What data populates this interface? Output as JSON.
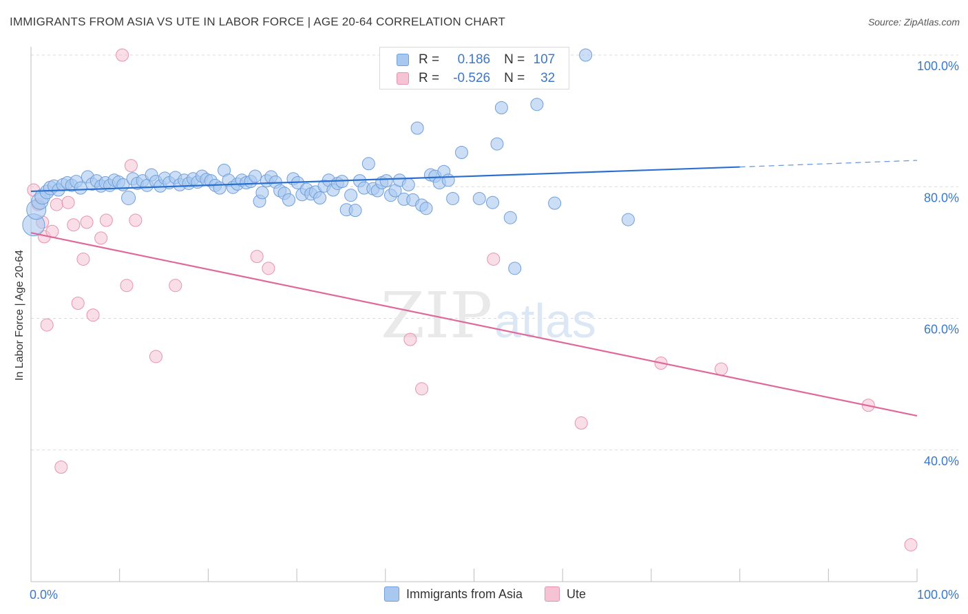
{
  "title": "IMMIGRANTS FROM ASIA VS UTE IN LABOR FORCE | AGE 20-64 CORRELATION CHART",
  "source": "Source: ZipAtlas.com",
  "watermark": {
    "zip": "ZIP",
    "atlas": "atlas"
  },
  "legend": {
    "rows": [
      {
        "r_label": "R =",
        "r_value": "0.186",
        "n_label": "N =",
        "n_value": "107"
      },
      {
        "r_label": "R =",
        "r_value": "-0.526",
        "n_label": "N =",
        "n_value": "32"
      }
    ]
  },
  "bottom_legend": [
    {
      "label": "Immigrants from Asia"
    },
    {
      "label": "Ute"
    }
  ],
  "colors": {
    "blue_fill": "#a9c8f0",
    "blue_stroke": "#6f9ed8",
    "blue_line": "#2a6fd0",
    "pink_fill": "#f6c3d4",
    "pink_stroke": "#e891ae",
    "pink_line": "#e0679a",
    "tick_label": "#3a78c9",
    "grid": "#d8d8d8"
  },
  "chart_data": {
    "type": "scatter",
    "title": "IMMIGRANTS FROM ASIA VS UTE IN LABOR FORCE | AGE 20-64 CORRELATION CHART",
    "xlabel": "",
    "ylabel": "In Labor Force | Age 20-64",
    "xlim": [
      0,
      100
    ],
    "ylim": [
      20,
      104
    ],
    "x_tick_labels": [
      {
        "value": 0,
        "label": "0.0%"
      },
      {
        "value": 100,
        "label": "100.0%"
      }
    ],
    "y_tick_labels": [
      {
        "value": 40,
        "label": "40.0%"
      },
      {
        "value": 60,
        "label": "60.0%"
      },
      {
        "value": 80,
        "label": "80.0%"
      },
      {
        "value": 100,
        "label": "100.0%"
      }
    ],
    "grid": true,
    "legend_position": "top-center",
    "series": [
      {
        "name": "Immigrants from Asia",
        "color": "#a9c8f0",
        "trend": {
          "x": [
            0,
            80
          ],
          "y": [
            79.3,
            83.0
          ],
          "dashed_to_x": 100,
          "dashed_to_y": 84.0
        },
        "points": [
          [
            0.3,
            74.2,
            16
          ],
          [
            0.6,
            76.5,
            14
          ],
          [
            1.0,
            77.8,
            12
          ],
          [
            1.3,
            78.5,
            11
          ],
          [
            1.8,
            79.2,
            10
          ],
          [
            2.2,
            79.8,
            10
          ],
          [
            2.6,
            80.1,
            9
          ],
          [
            3.1,
            79.5,
            9
          ],
          [
            3.6,
            80.3,
            9
          ],
          [
            4.1,
            80.6,
            9
          ],
          [
            4.6,
            80.2,
            9
          ],
          [
            5.1,
            80.8,
            9
          ],
          [
            5.6,
            79.8,
            9
          ],
          [
            6.4,
            81.5,
            9
          ],
          [
            6.9,
            80.4,
            9
          ],
          [
            7.4,
            80.9,
            9
          ],
          [
            7.9,
            80.1,
            9
          ],
          [
            8.4,
            80.6,
            9
          ],
          [
            8.9,
            80.2,
            9
          ],
          [
            9.4,
            81.0,
            9
          ],
          [
            9.9,
            80.7,
            9
          ],
          [
            10.4,
            80.3,
            9
          ],
          [
            11.0,
            78.3,
            10
          ],
          [
            11.5,
            81.2,
            9
          ],
          [
            12.0,
            80.5,
            9
          ],
          [
            12.6,
            80.9,
            9
          ],
          [
            13.1,
            80.2,
            9
          ],
          [
            13.6,
            81.8,
            9
          ],
          [
            14.1,
            80.8,
            9
          ],
          [
            14.6,
            80.1,
            9
          ],
          [
            15.1,
            81.3,
            9
          ],
          [
            15.6,
            80.6,
            9
          ],
          [
            16.3,
            81.4,
            9
          ],
          [
            16.8,
            80.3,
            9
          ],
          [
            17.3,
            81.0,
            9
          ],
          [
            17.8,
            80.5,
            9
          ],
          [
            18.3,
            81.2,
            9
          ],
          [
            18.8,
            80.7,
            9
          ],
          [
            19.3,
            81.6,
            9
          ],
          [
            19.8,
            81.1,
            9
          ],
          [
            20.3,
            80.9,
            9
          ],
          [
            20.8,
            80.2,
            9
          ],
          [
            21.3,
            79.8,
            9
          ],
          [
            21.8,
            82.5,
            9
          ],
          [
            22.3,
            81.0,
            9
          ],
          [
            22.8,
            79.9,
            9
          ],
          [
            23.3,
            80.4,
            9
          ],
          [
            23.8,
            81.0,
            9
          ],
          [
            24.3,
            80.6,
            9
          ],
          [
            24.8,
            80.8,
            9
          ],
          [
            25.3,
            81.6,
            9
          ],
          [
            25.8,
            77.8,
            9
          ],
          [
            26.1,
            79.1,
            9
          ],
          [
            26.6,
            80.9,
            9
          ],
          [
            27.1,
            81.5,
            9
          ],
          [
            27.6,
            80.7,
            9
          ],
          [
            28.1,
            79.4,
            9
          ],
          [
            28.6,
            79.0,
            9
          ],
          [
            29.1,
            78.0,
            9
          ],
          [
            29.6,
            81.2,
            9
          ],
          [
            30.1,
            80.6,
            9
          ],
          [
            30.6,
            78.8,
            9
          ],
          [
            31.1,
            79.6,
            9
          ],
          [
            31.6,
            78.9,
            9
          ],
          [
            32.1,
            79.2,
            9
          ],
          [
            32.6,
            78.3,
            9
          ],
          [
            33.1,
            80.1,
            9
          ],
          [
            33.6,
            81.0,
            9
          ],
          [
            34.1,
            79.5,
            9
          ],
          [
            34.6,
            80.5,
            9
          ],
          [
            35.1,
            80.8,
            9
          ],
          [
            35.6,
            76.5,
            9
          ],
          [
            36.1,
            78.7,
            9
          ],
          [
            36.6,
            76.4,
            9
          ],
          [
            37.1,
            80.9,
            9
          ],
          [
            37.6,
            79.8,
            9
          ],
          [
            38.1,
            83.5,
            9
          ],
          [
            38.6,
            79.7,
            9
          ],
          [
            39.1,
            79.4,
            9
          ],
          [
            39.6,
            80.6,
            9
          ],
          [
            40.1,
            80.9,
            9
          ],
          [
            40.6,
            78.7,
            9
          ],
          [
            41.1,
            79.4,
            9
          ],
          [
            41.6,
            81.0,
            9
          ],
          [
            42.1,
            78.1,
            9
          ],
          [
            42.6,
            80.3,
            9
          ],
          [
            43.1,
            78.0,
            9
          ],
          [
            43.6,
            88.9,
            9
          ],
          [
            44.1,
            77.2,
            9
          ],
          [
            44.6,
            76.7,
            9
          ],
          [
            45.1,
            81.8,
            9
          ],
          [
            45.6,
            81.6,
            9
          ],
          [
            46.1,
            80.6,
            9
          ],
          [
            46.6,
            82.3,
            9
          ],
          [
            47.1,
            81.0,
            9
          ],
          [
            47.6,
            78.2,
            9
          ],
          [
            48.6,
            85.2,
            9
          ],
          [
            50.6,
            78.2,
            9
          ],
          [
            52.1,
            77.6,
            9
          ],
          [
            52.6,
            86.5,
            9
          ],
          [
            53.1,
            92.0,
            9
          ],
          [
            54.1,
            75.3,
            9
          ],
          [
            54.6,
            67.6,
            9
          ],
          [
            57.1,
            92.5,
            9
          ],
          [
            59.1,
            77.5,
            9
          ],
          [
            62.6,
            100.0,
            9
          ],
          [
            67.4,
            75.0,
            9
          ]
        ]
      },
      {
        "name": "Ute",
        "color": "#f6c3d4",
        "trend": {
          "x": [
            0,
            100
          ],
          "y": [
            73.0,
            45.2
          ]
        },
        "points": [
          [
            0.3,
            79.5,
            9
          ],
          [
            0.8,
            77.3,
            9
          ],
          [
            1.3,
            74.6,
            9
          ],
          [
            1.5,
            72.4,
            9
          ],
          [
            1.8,
            59.0,
            9
          ],
          [
            2.4,
            73.2,
            9
          ],
          [
            2.9,
            77.3,
            9
          ],
          [
            3.4,
            37.4,
            9
          ],
          [
            4.2,
            77.6,
            9
          ],
          [
            4.8,
            74.2,
            9
          ],
          [
            5.3,
            62.3,
            9
          ],
          [
            5.9,
            69.0,
            9
          ],
          [
            6.3,
            74.6,
            9
          ],
          [
            7.0,
            60.5,
            9
          ],
          [
            7.9,
            72.2,
            9
          ],
          [
            8.5,
            74.9,
            9
          ],
          [
            10.3,
            100.0,
            9
          ],
          [
            10.8,
            65.0,
            9
          ],
          [
            11.3,
            83.2,
            9
          ],
          [
            11.8,
            74.9,
            9
          ],
          [
            14.1,
            54.2,
            9
          ],
          [
            16.3,
            65.0,
            9
          ],
          [
            25.5,
            69.4,
            9
          ],
          [
            26.8,
            67.6,
            9
          ],
          [
            42.8,
            56.8,
            9
          ],
          [
            44.1,
            49.3,
            9
          ],
          [
            52.2,
            69.0,
            9
          ],
          [
            62.1,
            44.1,
            9
          ],
          [
            71.1,
            53.2,
            9
          ],
          [
            77.9,
            52.3,
            9
          ],
          [
            94.5,
            46.8,
            9
          ],
          [
            99.3,
            25.6,
            9
          ]
        ]
      }
    ]
  }
}
